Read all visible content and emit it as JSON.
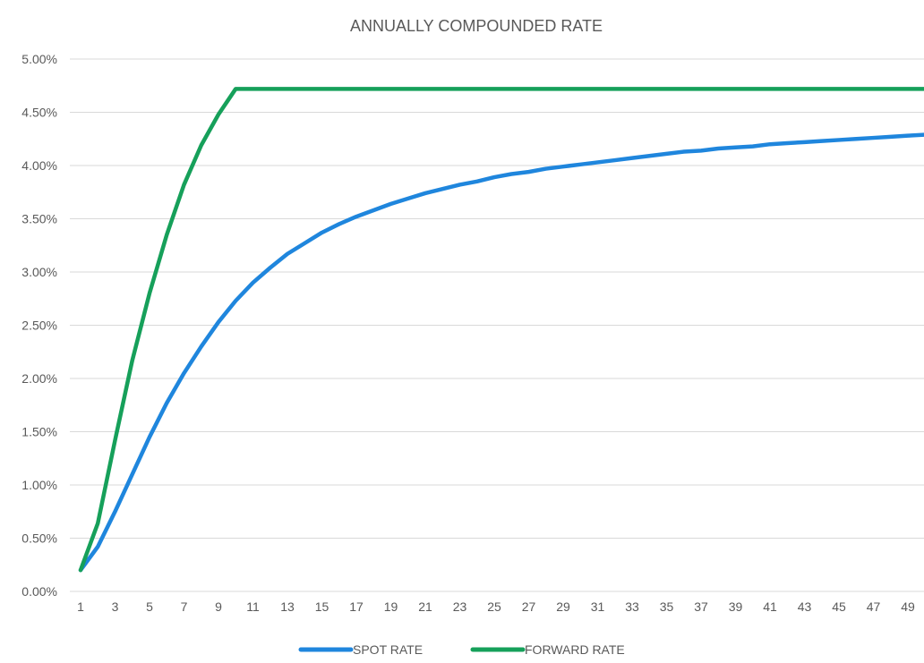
{
  "chart_data": {
    "type": "line",
    "title": "ANNUALLY COMPOUNDED RATE",
    "xlabel": "",
    "ylabel": "",
    "x": [
      1,
      2,
      3,
      4,
      5,
      6,
      7,
      8,
      9,
      10,
      11,
      12,
      13,
      14,
      15,
      16,
      17,
      18,
      19,
      20,
      21,
      22,
      23,
      24,
      25,
      26,
      27,
      28,
      29,
      30,
      31,
      32,
      33,
      34,
      35,
      36,
      37,
      38,
      39,
      40,
      41,
      42,
      43,
      44,
      45,
      46,
      47,
      48,
      49,
      50
    ],
    "x_tick_labels": [
      "1",
      "3",
      "5",
      "7",
      "9",
      "11",
      "13",
      "15",
      "17",
      "19",
      "21",
      "23",
      "25",
      "27",
      "29",
      "31",
      "33",
      "35",
      "37",
      "39",
      "41",
      "43",
      "45",
      "47",
      "49"
    ],
    "y_tick_labels": [
      "0.00%",
      "0.50%",
      "1.00%",
      "1.50%",
      "2.00%",
      "2.50%",
      "3.00%",
      "3.50%",
      "4.00%",
      "4.50%",
      "5.00%"
    ],
    "ylim": [
      0,
      5
    ],
    "y_unit": "%",
    "grid": true,
    "legend_position": "bottom",
    "series": [
      {
        "name": "SPOT RATE",
        "color": "#1f86dd",
        "values": [
          0.2,
          0.42,
          0.75,
          1.1,
          1.45,
          1.77,
          2.05,
          2.3,
          2.53,
          2.73,
          2.9,
          3.04,
          3.17,
          3.27,
          3.37,
          3.45,
          3.52,
          3.58,
          3.64,
          3.69,
          3.74,
          3.78,
          3.82,
          3.85,
          3.89,
          3.92,
          3.94,
          3.97,
          3.99,
          4.01,
          4.03,
          4.05,
          4.07,
          4.09,
          4.11,
          4.13,
          4.14,
          4.16,
          4.17,
          4.18,
          4.2,
          4.21,
          4.22,
          4.23,
          4.24,
          4.25,
          4.26,
          4.27,
          4.28,
          4.29
        ]
      },
      {
        "name": "FORWARD RATE",
        "color": "#16a05a",
        "values": [
          0.2,
          0.64,
          1.42,
          2.17,
          2.8,
          3.35,
          3.82,
          4.19,
          4.48,
          4.72,
          4.72,
          4.72,
          4.72,
          4.72,
          4.72,
          4.72,
          4.72,
          4.72,
          4.72,
          4.72,
          4.72,
          4.72,
          4.72,
          4.72,
          4.72,
          4.72,
          4.72,
          4.72,
          4.72,
          4.72,
          4.72,
          4.72,
          4.72,
          4.72,
          4.72,
          4.72,
          4.72,
          4.72,
          4.72,
          4.72,
          4.72,
          4.72,
          4.72,
          4.72,
          4.72,
          4.72,
          4.72,
          4.72,
          4.72,
          4.72
        ]
      }
    ]
  }
}
